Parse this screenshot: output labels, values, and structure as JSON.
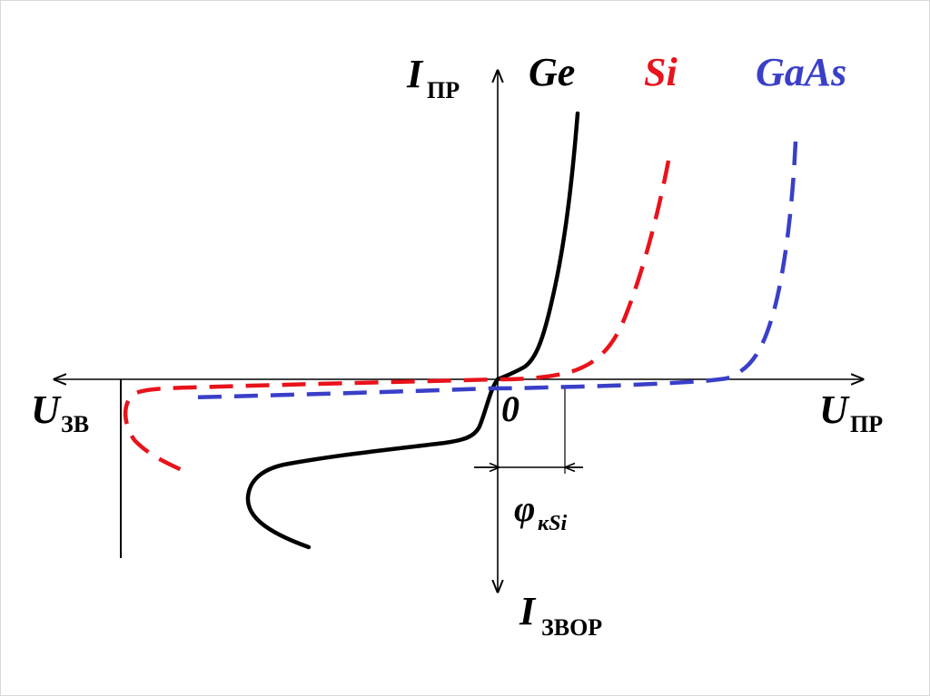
{
  "chart_data": {
    "type": "line",
    "title": "",
    "axes": {
      "y_positive": {
        "main": "I",
        "sub": "ПР"
      },
      "y_negative": {
        "main": "I",
        "sub": "ЗВОР"
      },
      "x_positive": {
        "main": "U",
        "sub": "ПР"
      },
      "x_negative": {
        "main": "U",
        "sub": "ЗВ"
      },
      "origin": "0"
    },
    "annotation": {
      "main": "φ",
      "sub": "кSi"
    },
    "series": [
      {
        "name": "Ge",
        "color": "#000000",
        "style": "solid"
      },
      {
        "name": "Si",
        "color": "#e8131b",
        "style": "dashed"
      },
      {
        "name": "GaAs",
        "color": "#3a3fc8",
        "style": "dashed"
      }
    ],
    "grid": false,
    "legend": "top"
  }
}
